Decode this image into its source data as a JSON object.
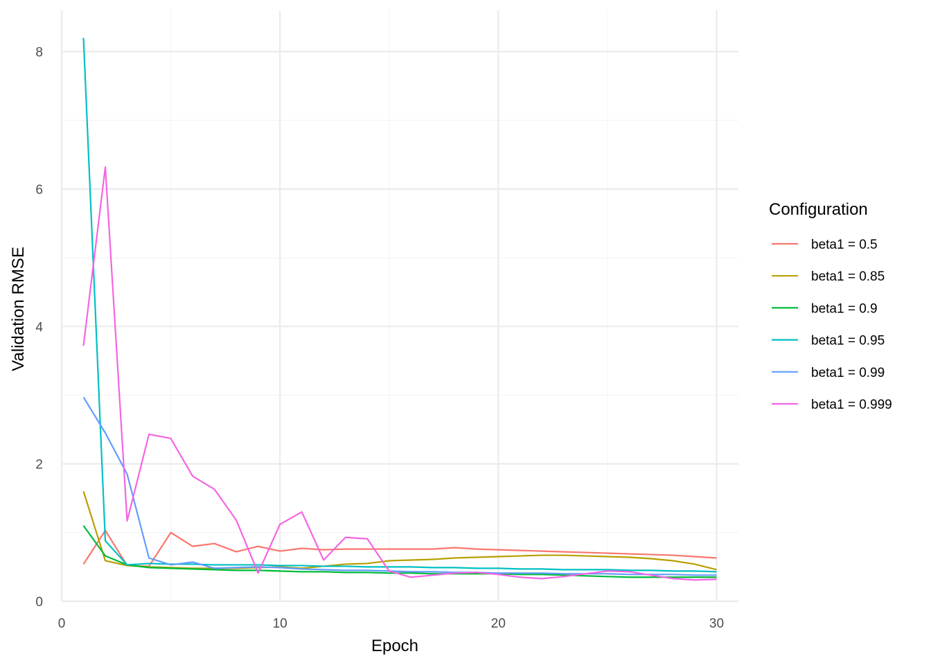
{
  "chart_data": {
    "type": "line",
    "title": "",
    "xlabel": "Epoch",
    "ylabel": "Validation RMSE",
    "xlim": [
      0,
      31
    ],
    "ylim": [
      0,
      8.6
    ],
    "x_ticks": [
      0,
      10,
      20,
      30
    ],
    "y_ticks": [
      0,
      2,
      4,
      6,
      8
    ],
    "grid": true,
    "legend": {
      "title": "Configuration",
      "position": "right"
    },
    "x": [
      1,
      2,
      3,
      4,
      5,
      6,
      7,
      8,
      9,
      10,
      11,
      12,
      13,
      14,
      15,
      16,
      17,
      18,
      19,
      20,
      21,
      22,
      23,
      24,
      25,
      26,
      27,
      28,
      29,
      30
    ],
    "series": [
      {
        "name": "beta1 = 0.5",
        "color": "#F8766D",
        "values": [
          0.54,
          1.03,
          0.52,
          0.51,
          1.0,
          0.8,
          0.84,
          0.72,
          0.8,
          0.73,
          0.77,
          0.75,
          0.76,
          0.76,
          0.76,
          0.76,
          0.76,
          0.78,
          0.76,
          0.75,
          0.74,
          0.73,
          0.72,
          0.71,
          0.7,
          0.69,
          0.68,
          0.67,
          0.65,
          0.63
        ]
      },
      {
        "name": "beta1 = 0.85",
        "color": "#B79F00",
        "values": [
          1.6,
          0.59,
          0.52,
          0.5,
          0.49,
          0.48,
          0.48,
          0.48,
          0.49,
          0.5,
          0.48,
          0.51,
          0.54,
          0.55,
          0.59,
          0.6,
          0.61,
          0.63,
          0.64,
          0.65,
          0.66,
          0.67,
          0.67,
          0.66,
          0.65,
          0.64,
          0.62,
          0.59,
          0.54,
          0.46
        ]
      },
      {
        "name": "beta1 = 0.9",
        "color": "#00BA38",
        "values": [
          1.1,
          0.66,
          0.53,
          0.49,
          0.48,
          0.47,
          0.46,
          0.45,
          0.45,
          0.44,
          0.43,
          0.43,
          0.42,
          0.42,
          0.41,
          0.41,
          0.4,
          0.4,
          0.4,
          0.4,
          0.39,
          0.39,
          0.38,
          0.37,
          0.36,
          0.35,
          0.35,
          0.35,
          0.35,
          0.35
        ]
      },
      {
        "name": "beta1 = 0.95",
        "color": "#00BFC4",
        "values": [
          8.2,
          0.88,
          0.53,
          0.55,
          0.54,
          0.54,
          0.53,
          0.53,
          0.53,
          0.52,
          0.52,
          0.51,
          0.51,
          0.5,
          0.5,
          0.5,
          0.49,
          0.49,
          0.48,
          0.48,
          0.47,
          0.47,
          0.46,
          0.46,
          0.46,
          0.45,
          0.45,
          0.44,
          0.44,
          0.43
        ]
      },
      {
        "name": "beta1 = 0.99",
        "color": "#619CFF",
        "values": [
          2.97,
          2.45,
          1.85,
          0.63,
          0.53,
          0.57,
          0.48,
          0.49,
          0.5,
          0.49,
          0.47,
          0.46,
          0.45,
          0.45,
          0.44,
          0.43,
          0.43,
          0.42,
          0.42,
          0.41,
          0.41,
          0.41,
          0.4,
          0.4,
          0.4,
          0.39,
          0.39,
          0.39,
          0.38,
          0.38
        ]
      },
      {
        "name": "beta1 = 0.999",
        "color": "#F564E3",
        "values": [
          3.72,
          6.32,
          1.17,
          2.43,
          2.37,
          1.82,
          1.63,
          1.18,
          0.41,
          1.12,
          1.3,
          0.6,
          0.93,
          0.91,
          0.44,
          0.35,
          0.38,
          0.41,
          0.42,
          0.39,
          0.35,
          0.33,
          0.36,
          0.4,
          0.44,
          0.43,
          0.38,
          0.33,
          0.31,
          0.32
        ]
      }
    ]
  }
}
